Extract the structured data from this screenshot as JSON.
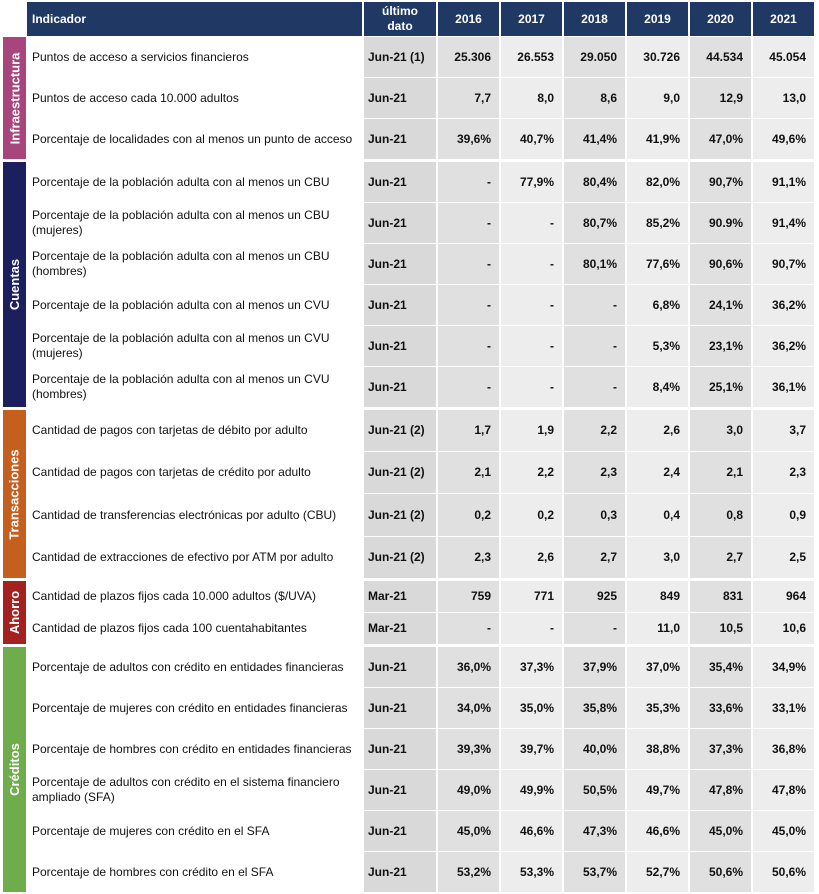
{
  "header": {
    "indicator": "Indicador",
    "last": "último dato",
    "years": [
      "2016",
      "2017",
      "2018",
      "2019",
      "2020",
      "2021"
    ]
  },
  "groups": [
    {
      "name": "Infraestructura",
      "rows": [
        {
          "indicator": "Puntos de acceso a servicios financieros",
          "last": "Jun-21 (1)",
          "values": [
            "25.306",
            "26.553",
            "29.050",
            "30.726",
            "44.534",
            "45.054"
          ]
        },
        {
          "indicator": "Puntos de acceso cada 10.000 adultos",
          "last": "Jun-21",
          "values": [
            "7,7",
            "8,0",
            "8,6",
            "9,0",
            "12,9",
            "13,0"
          ]
        },
        {
          "indicator": "Porcentaje de localidades con al menos un punto de acceso",
          "last": "Jun-21",
          "values": [
            "39,6%",
            "40,7%",
            "41,4%",
            "41,9%",
            "47,0%",
            "49,6%"
          ]
        }
      ]
    },
    {
      "name": "Cuentas",
      "rows": [
        {
          "indicator": "Porcentaje de la población adulta con al menos un CBU",
          "last": "Jun-21",
          "values": [
            "-",
            "77,9%",
            "80,4%",
            "82,0%",
            "90,7%",
            "91,1%"
          ]
        },
        {
          "indicator": "Porcentaje de la población adulta con al menos un CBU (mujeres)",
          "last": "Jun-21",
          "values": [
            "-",
            "-",
            "80,7%",
            "85,2%",
            "90.9%",
            "91,4%"
          ]
        },
        {
          "indicator": "Porcentaje de la población adulta con al menos un CBU (hombres)",
          "last": "Jun-21",
          "values": [
            "-",
            "-",
            "80,1%",
            "77,6%",
            "90,6%",
            "90,7%"
          ]
        },
        {
          "indicator": "Porcentaje de la población adulta con al menos un CVU",
          "last": "Jun-21",
          "values": [
            "-",
            "-",
            "-",
            "6,8%",
            "24,1%",
            "36,2%"
          ]
        },
        {
          "indicator": "Porcentaje de la población adulta con al menos un CVU (mujeres)",
          "last": "Jun-21",
          "values": [
            "-",
            "-",
            "-",
            "5,3%",
            "23,1%",
            "36,2%"
          ]
        },
        {
          "indicator": "Porcentaje de la población adulta con al menos un CVU (hombres)",
          "last": "Jun-21",
          "values": [
            "-",
            "-",
            "-",
            "8,4%",
            "25,1%",
            "36,1%"
          ]
        }
      ]
    },
    {
      "name": "Transacciones",
      "rows": [
        {
          "indicator": "Cantidad de pagos con tarjetas de débito por adulto",
          "last": "Jun-21 (2)",
          "values": [
            "1,7",
            "1,9",
            "2,2",
            "2,6",
            "3,0",
            "3,7"
          ]
        },
        {
          "indicator": "Cantidad de pagos con tarjetas de crédito por adulto",
          "last": "Jun-21 (2)",
          "values": [
            "2,1",
            "2,2",
            "2,3",
            "2,4",
            "2,1",
            "2,3"
          ]
        },
        {
          "indicator": "Cantidad de transferencias electrónicas por adulto (CBU)",
          "last": "Jun-21 (2)",
          "values": [
            "0,2",
            "0,2",
            "0,3",
            "0,4",
            "0,8",
            "0,9"
          ]
        },
        {
          "indicator": "Cantidad de extracciones de efectivo por ATM por adulto",
          "last": "Jun-21 (2)",
          "values": [
            "2,3",
            "2,6",
            "2,7",
            "3,0",
            "2,7",
            "2,5"
          ]
        }
      ]
    },
    {
      "name": "Ahorro",
      "rows": [
        {
          "indicator": "Cantidad de plazos fijos cada 10.000 adultos ($/UVA)",
          "last": "Mar-21",
          "values": [
            "759",
            "771",
            "925",
            "849",
            "831",
            "964"
          ]
        },
        {
          "indicator": "Cantidad de plazos fijos cada 100 cuentahabitantes",
          "last": "Mar-21",
          "values": [
            "-",
            "-",
            "-",
            "11,0",
            "10,5",
            "10,6"
          ]
        }
      ]
    },
    {
      "name": "Créditos",
      "rows": [
        {
          "indicator": "Porcentaje de adultos con crédito en entidades financieras",
          "last": "Jun-21",
          "values": [
            "36,0%",
            "37,3%",
            "37,9%",
            "37,0%",
            "35,4%",
            "34,9%"
          ]
        },
        {
          "indicator": "Porcentaje de mujeres con crédito en entidades financieras",
          "last": "Jun-21",
          "values": [
            "34,0%",
            "35,0%",
            "35,8%",
            "35,3%",
            "33,6%",
            "33,1%"
          ]
        },
        {
          "indicator": "Porcentaje de hombres con crédito en entidades financieras",
          "last": "Jun-21",
          "values": [
            "39,3%",
            "39,7%",
            "40,0%",
            "38,8%",
            "37,3%",
            "36,8%"
          ]
        },
        {
          "indicator": "Porcentaje de adultos con crédito en el sistema financiero ampliado (SFA)",
          "last": "Jun-21",
          "values": [
            "49,0%",
            "49,9%",
            "50,5%",
            "49,7%",
            "47,8%",
            "47,8%"
          ]
        },
        {
          "indicator": "Porcentaje de mujeres con crédito en el SFA",
          "last": "Jun-21",
          "values": [
            "45,0%",
            "46,6%",
            "47,3%",
            "46,6%",
            "45,0%",
            "45,0%"
          ]
        },
        {
          "indicator": "Porcentaje de hombres con crédito en el SFA",
          "last": "Jun-21",
          "values": [
            "53,2%",
            "53,3%",
            "53,7%",
            "52,7%",
            "50,6%",
            "50,6%"
          ]
        }
      ]
    }
  ]
}
